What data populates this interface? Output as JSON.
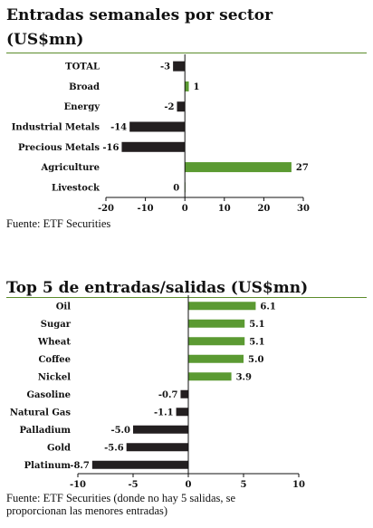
{
  "colors": {
    "positive": "#5b9a32",
    "negative": "#231f20",
    "rule": "#5b8c2a"
  },
  "chart_data": [
    {
      "type": "bar",
      "orientation": "horizontal",
      "title_line1": "Entradas semanales por sector",
      "title_line2": "(US$mn)",
      "categories": [
        "TOTAL",
        "Broad",
        "Energy",
        "Industrial Metals",
        "Precious Metals",
        "Agriculture",
        "Livestock"
      ],
      "values": [
        -3,
        1,
        -2,
        -14,
        -16,
        27,
        0
      ],
      "labels": [
        "-3",
        "1",
        "-2",
        "-14",
        "-16",
        "27",
        "0"
      ],
      "xlim": [
        -20,
        30
      ],
      "xticks": [
        "-20",
        "-10",
        "0",
        "10",
        "20",
        "30"
      ],
      "source": "Fuente: ETF Securities"
    },
    {
      "type": "bar",
      "orientation": "horizontal",
      "title": "Top 5 de entradas/salidas (US$mn)",
      "categories": [
        "Oil",
        "Sugar",
        "Wheat",
        "Coffee",
        "Nickel",
        "Gasoline",
        "Natural Gas",
        "Palladium",
        "Gold",
        "Platinum"
      ],
      "values": [
        6.1,
        5.1,
        5.1,
        5.0,
        3.9,
        -0.7,
        -1.1,
        -5.0,
        -5.6,
        -8.7
      ],
      "labels": [
        "6.1",
        "5.1",
        "5.1",
        "5.0",
        "3.9",
        "-0.7",
        "-1.1",
        "-5.0",
        "-5.6",
        "-8.7"
      ],
      "xlim": [
        -10,
        10
      ],
      "xticks": [
        "-10",
        "-5",
        "0",
        "5",
        "10"
      ],
      "source_line1": "Fuente:  ETF  Securities  (donde  no  hay  5  salidas,  se",
      "source_line2": "proporcionan las menores entradas)"
    }
  ]
}
